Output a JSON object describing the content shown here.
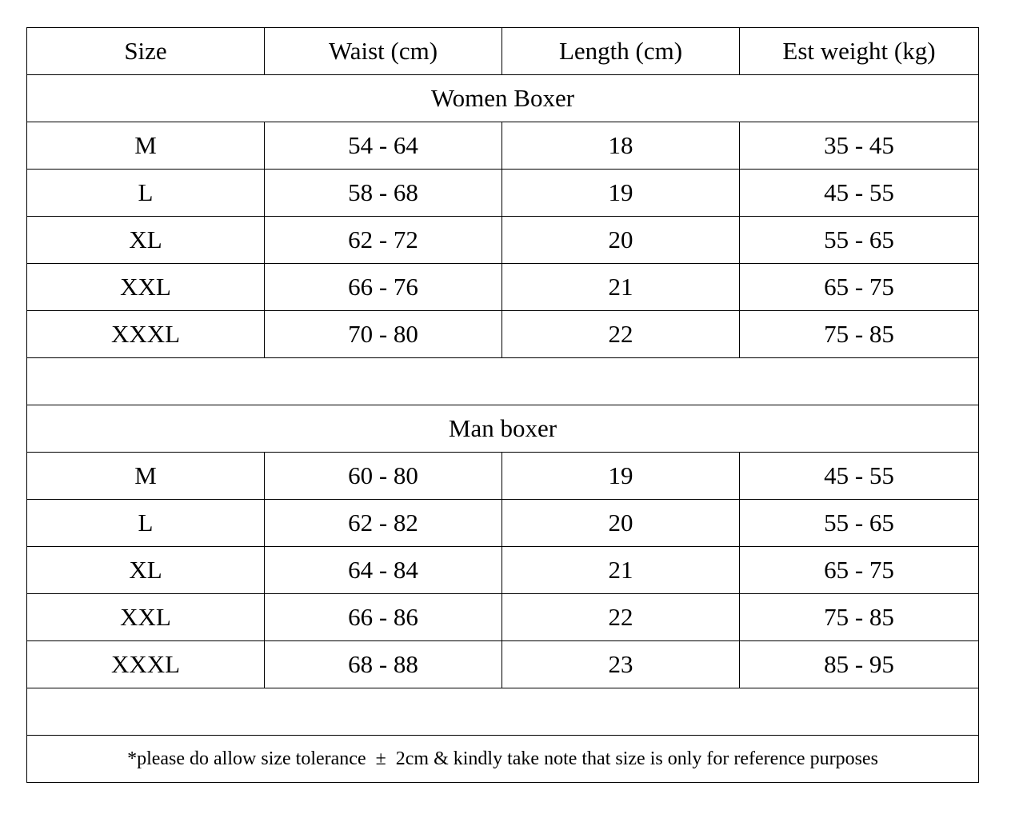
{
  "headers": [
    "Size",
    "Waist (cm)",
    "Length (cm)",
    "Est weight (kg)"
  ],
  "sections": [
    {
      "title": "Women Boxer",
      "rows": [
        [
          "M",
          "54 - 64",
          "18",
          "35 - 45"
        ],
        [
          "L",
          "58 - 68",
          "19",
          "45 - 55"
        ],
        [
          "XL",
          "62 - 72",
          "20",
          "55 - 65"
        ],
        [
          "XXL",
          "66 - 76",
          "21",
          "65 - 75"
        ],
        [
          "XXXL",
          "70 - 80",
          "22",
          "75 - 85"
        ]
      ]
    },
    {
      "title": "Man boxer",
      "rows": [
        [
          "M",
          "60 - 80",
          "19",
          "45 - 55"
        ],
        [
          "L",
          "62 - 82",
          "20",
          "55 - 65"
        ],
        [
          "XL",
          "64 - 84",
          "21",
          "65 - 75"
        ],
        [
          "XXL",
          "66 - 86",
          "22",
          "75 - 85"
        ],
        [
          "XXXL",
          "68 - 88",
          "23",
          "85 - 95"
        ]
      ]
    }
  ],
  "note": "*please do allow size tolerance  ±  2cm & kindly take note that size is only for reference purposes"
}
